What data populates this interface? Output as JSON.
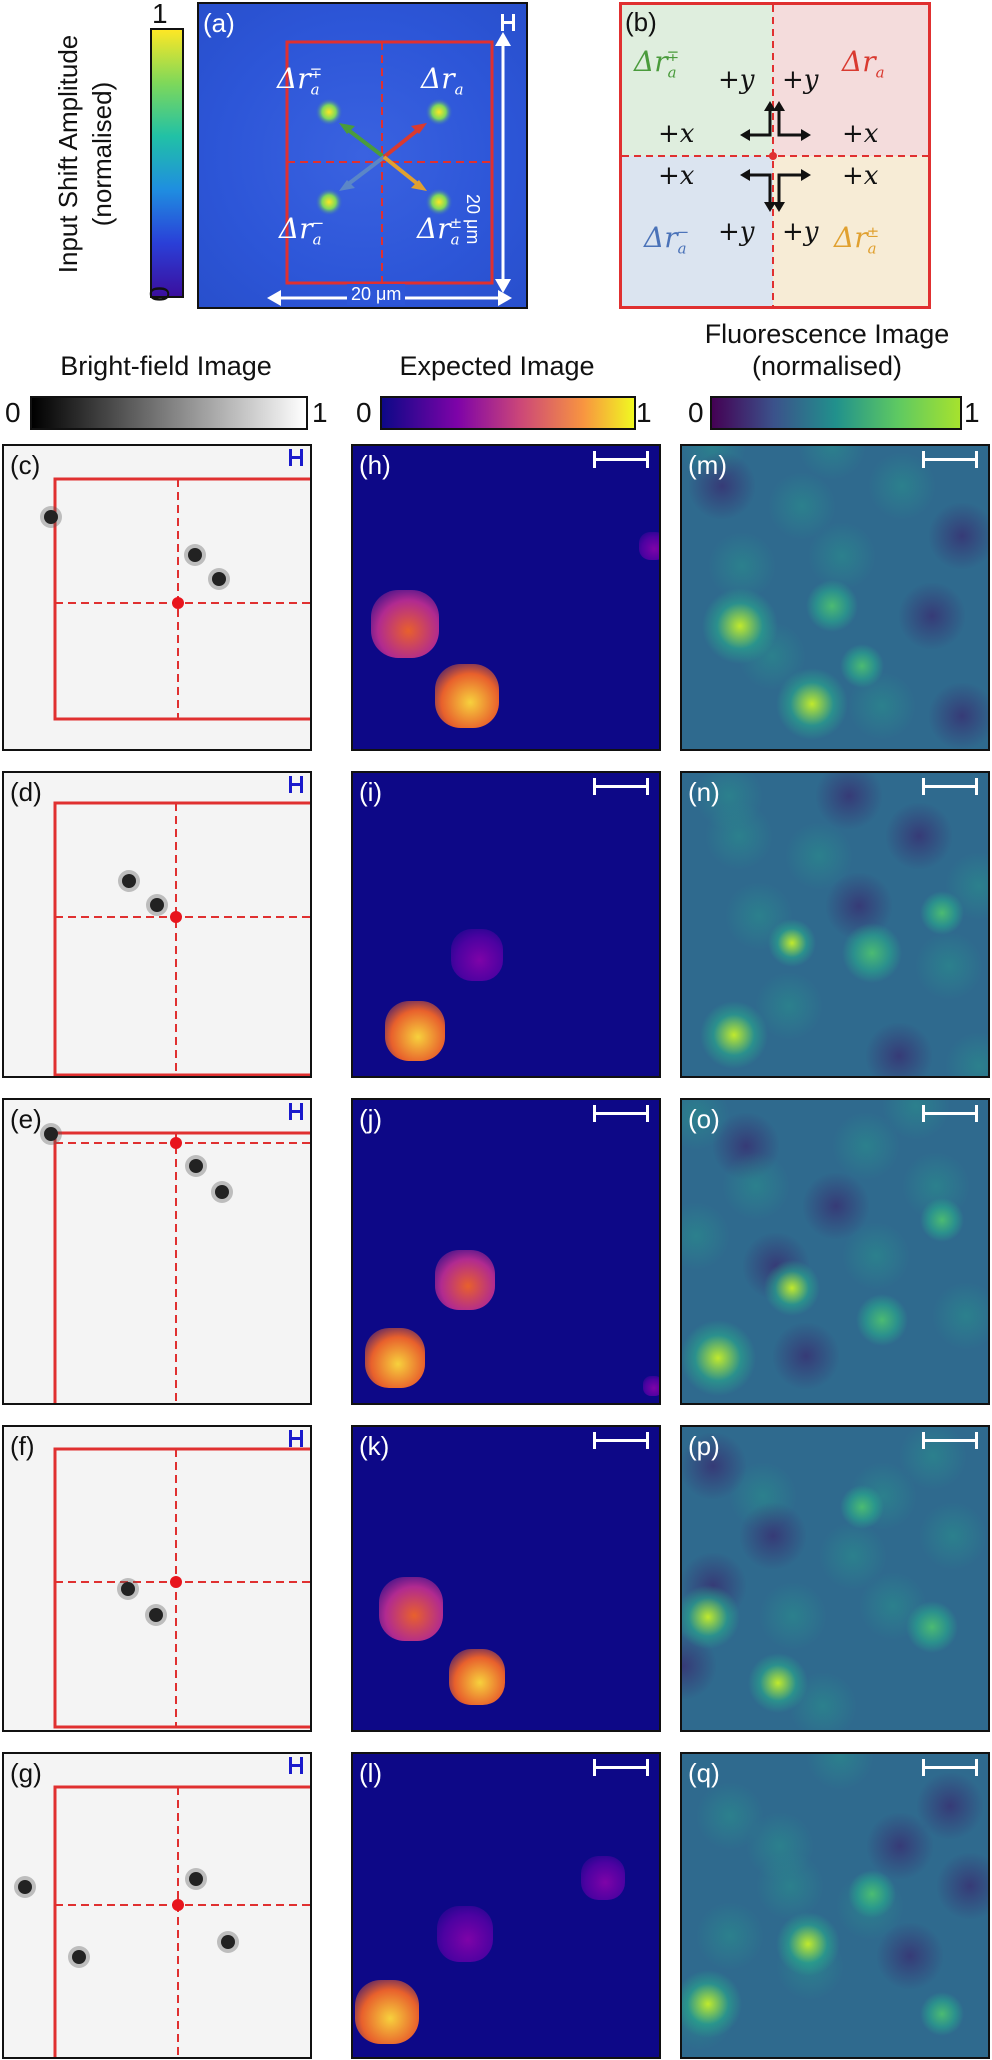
{
  "panel_a": {
    "label": "(a)",
    "colorbar_title_line1": "Input Shift Amplitude",
    "colorbar_title_line2": "(normalised)",
    "colorbar_max": "1",
    "colorbar_min": "0",
    "dim_vertical": "20 μm",
    "dim_horizontal": "20 μm",
    "quadrant_labels": {
      "top_left": "Δr",
      "top_left_sup": "∓",
      "top_right": "Δr",
      "bottom_left": "Δr",
      "bottom_left_sup": "−",
      "bottom_right": "Δr",
      "bottom_right_sup": "±",
      "sub": "a"
    }
  },
  "panel_b": {
    "label": "(b)",
    "plus_x": "+x",
    "plus_y": "+y",
    "quad_tl": "Δr",
    "quad_tl_sup": "∓",
    "quad_tr": "Δr",
    "quad_bl": "Δr",
    "quad_bl_sup": "−",
    "quad_br": "Δr",
    "quad_br_sup": "±",
    "sub": "a",
    "colors": {
      "tl": "#dfeede",
      "tr": "#f4dcdc",
      "bl": "#dbe4f0",
      "br": "#f7ecd6",
      "frame": "#e03030"
    }
  },
  "column_headers": {
    "bright_field": "Bright-field Image",
    "expected": "Expected Image",
    "fluorescence_line1": "Fluorescence Image",
    "fluorescence_line2": "(normalised)"
  },
  "colorbars": {
    "bright_min": "0",
    "bright_max": "1",
    "expected_min": "0",
    "expected_max": "1",
    "fluor_min": "0",
    "fluor_max": "1"
  },
  "rows": [
    {
      "bf_label": "(c)",
      "exp_label": "(h)",
      "fl_label": "(m)"
    },
    {
      "bf_label": "(d)",
      "exp_label": "(i)",
      "fl_label": "(n)"
    },
    {
      "bf_label": "(e)",
      "exp_label": "(j)",
      "fl_label": "(o)"
    },
    {
      "bf_label": "(f)",
      "exp_label": "(k)",
      "fl_label": "(p)"
    },
    {
      "bf_label": "(g)",
      "exp_label": "(l)",
      "fl_label": "(q)"
    }
  ]
}
